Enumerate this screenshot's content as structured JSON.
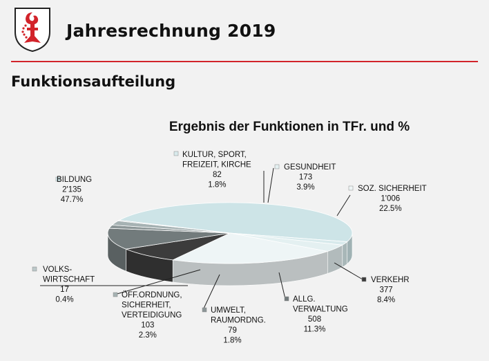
{
  "header": {
    "title": "Jahresrechnung 2019",
    "logo": "basel-landschaft-coat-of-arms"
  },
  "section": {
    "title": "Funktionsaufteilung"
  },
  "colors": {
    "accent": "#d2232a"
  },
  "chart_data": {
    "type": "pie",
    "title": "Ergebnis der Funktionen in TFr. und %",
    "unit": "TFr.",
    "slices": [
      {
        "label_lines": [
          "BILDUNG"
        ],
        "value": 2135,
        "value_text": "2'135",
        "percent": 47.7,
        "percent_text": "47.7%",
        "color": "#cde4e7"
      },
      {
        "label_lines": [
          "KULTUR, SPORT,",
          "FREIZEIT, KIRCHE"
        ],
        "value": 82,
        "value_text": "82",
        "percent": 1.8,
        "percent_text": "1.8%",
        "color": "#d8eaec"
      },
      {
        "label_lines": [
          "GESUNDHEIT"
        ],
        "value": 173,
        "value_text": "173",
        "percent": 3.9,
        "percent_text": "3.9%",
        "color": "#e4f0f1"
      },
      {
        "label_lines": [
          "SOZ. SICHERHEIT"
        ],
        "value": 1006,
        "value_text": "1'006",
        "percent": 22.5,
        "percent_text": "22.5%",
        "color": "#eef5f6"
      },
      {
        "label_lines": [
          "VERKEHR"
        ],
        "value": 377,
        "value_text": "377",
        "percent": 8.4,
        "percent_text": "8.4%",
        "color": "#3c3c3c"
      },
      {
        "label_lines": [
          "ALLG.",
          "VERWALTUNG"
        ],
        "value": 508,
        "value_text": "508",
        "percent": 11.3,
        "percent_text": "11.3%",
        "color": "#727b7c"
      },
      {
        "label_lines": [
          "UMWELT,",
          "RAUMORDNG."
        ],
        "value": 79,
        "value_text": "79",
        "percent": 1.8,
        "percent_text": "1.8%",
        "color": "#8c9697"
      },
      {
        "label_lines": [
          "ÖFF.ORDNUNG,",
          "SICHERHEIT,",
          "VERTEIDIGUNG"
        ],
        "value": 103,
        "value_text": "103",
        "percent": 2.3,
        "percent_text": "2.3%",
        "color": "#a6b2b3"
      },
      {
        "label_lines": [
          "VOLKS-",
          "WIRTSCHAFT"
        ],
        "value": 17,
        "value_text": "17",
        "percent": 0.4,
        "percent_text": "0.4%",
        "color": "#bcc8c9"
      }
    ]
  }
}
